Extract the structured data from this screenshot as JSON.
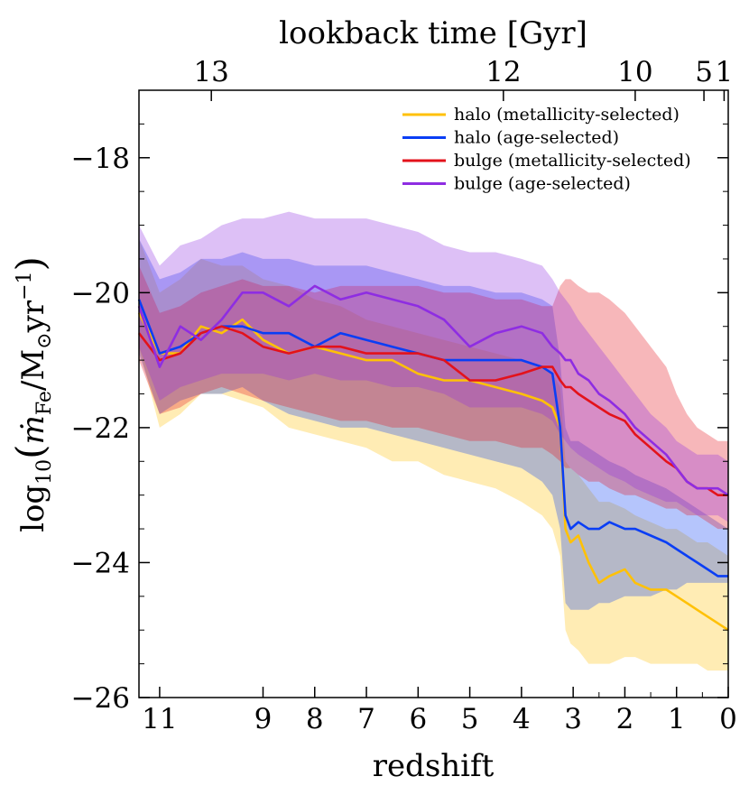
{
  "chart_data": {
    "type": "line",
    "xlabel": "redshift",
    "ylabel": "log10 (ṁFe/M⊙yr⁻¹)",
    "ylabel_parts": {
      "log": "log",
      "sub": "10",
      "lparen": "(",
      "mdot": "ṁ",
      "fe": "Fe",
      "slash": "/M",
      "sun": "⊙",
      "yr": "yr",
      "exp": "−1",
      "rparen": ")"
    },
    "top_xlabel": "lookback time [Gyr]",
    "xlim": [
      11.4,
      0
    ],
    "ylim": [
      -26,
      -17
    ],
    "x_ticks": [
      {
        "value": 11,
        "label": "11"
      },
      {
        "value": 9,
        "label": "9"
      },
      {
        "value": 8,
        "label": "8"
      },
      {
        "value": 7,
        "label": "7"
      },
      {
        "value": 6,
        "label": "6"
      },
      {
        "value": 5,
        "label": "5"
      },
      {
        "value": 4,
        "label": "4"
      },
      {
        "value": 3,
        "label": "3"
      },
      {
        "value": 2,
        "label": "2"
      },
      {
        "value": 1,
        "label": "1"
      },
      {
        "value": 0,
        "label": "0"
      }
    ],
    "y_ticks": [
      {
        "value": -18,
        "label": "−18"
      },
      {
        "value": -20,
        "label": "−20"
      },
      {
        "value": -22,
        "label": "−22"
      },
      {
        "value": -24,
        "label": "−24"
      },
      {
        "value": -26,
        "label": "−26"
      }
    ],
    "top_ticks": [
      {
        "z": 10.0,
        "label": "13"
      },
      {
        "z": 4.35,
        "label": "12"
      },
      {
        "z": 1.8,
        "label": "10"
      },
      {
        "z": 0.47,
        "label": "5"
      },
      {
        "z": 0.08,
        "label": "1"
      }
    ],
    "legend_position": "top-right",
    "series": [
      {
        "name": "halo (metallicity-selected)",
        "color": "#ffc107",
        "x": [
          11.4,
          11.0,
          10.6,
          10.2,
          9.8,
          9.4,
          9.0,
          8.5,
          8.0,
          7.5,
          7.0,
          6.5,
          6.0,
          5.5,
          5.0,
          4.5,
          4.0,
          3.6,
          3.4,
          3.25,
          3.15,
          3.05,
          2.9,
          2.7,
          2.5,
          2.3,
          2.0,
          1.8,
          1.5,
          1.2,
          1.0,
          0.8,
          0.6,
          0.4,
          0.2,
          0.0
        ],
        "y": [
          -20.3,
          -20.9,
          -20.9,
          -20.5,
          -20.6,
          -20.4,
          -20.7,
          -20.9,
          -20.8,
          -20.9,
          -21.0,
          -21.0,
          -21.2,
          -21.3,
          -21.3,
          -21.4,
          -21.5,
          -21.6,
          -21.7,
          -22.0,
          -23.5,
          -23.7,
          -23.6,
          -24.0,
          -24.3,
          -24.2,
          -24.1,
          -24.3,
          -24.4,
          -24.4,
          -24.5,
          -24.6,
          -24.7,
          -24.8,
          -24.9,
          -25.0
        ],
        "low": [
          -20.8,
          -22.0,
          -21.8,
          -21.5,
          -21.5,
          -21.6,
          -21.7,
          -22.0,
          -22.1,
          -22.2,
          -22.3,
          -22.5,
          -22.5,
          -22.7,
          -22.8,
          -22.9,
          -23.1,
          -23.3,
          -23.5,
          -23.9,
          -25.0,
          -25.2,
          -25.3,
          -25.5,
          -25.5,
          -25.5,
          -25.4,
          -25.4,
          -25.5,
          -25.5,
          -25.5,
          -25.5,
          -25.5,
          -25.6,
          -25.6,
          -25.6
        ],
        "high": [
          -19.2,
          -20.0,
          -19.8,
          -19.5,
          -19.6,
          -19.6,
          -19.8,
          -19.9,
          -20.1,
          -20.2,
          -20.4,
          -20.5,
          -20.6,
          -20.7,
          -20.8,
          -20.9,
          -21.0,
          -21.1,
          -21.2,
          -21.4,
          -22.5,
          -22.6,
          -22.7,
          -22.9,
          -23.1,
          -23.1,
          -23.2,
          -23.3,
          -23.4,
          -23.5,
          -23.5,
          -23.6,
          -23.7,
          -23.7,
          -23.8,
          -23.9
        ]
      },
      {
        "name": "halo (age-selected)",
        "color": "#0a3ef5",
        "x": [
          11.4,
          11.0,
          10.6,
          10.2,
          9.8,
          9.4,
          9.0,
          8.5,
          8.0,
          7.5,
          7.0,
          6.5,
          6.0,
          5.5,
          5.0,
          4.5,
          4.0,
          3.6,
          3.4,
          3.25,
          3.15,
          3.05,
          2.9,
          2.7,
          2.5,
          2.3,
          2.0,
          1.8,
          1.5,
          1.2,
          1.0,
          0.8,
          0.6,
          0.4,
          0.2,
          0.0
        ],
        "y": [
          -20.1,
          -20.9,
          -20.8,
          -20.6,
          -20.5,
          -20.5,
          -20.6,
          -20.6,
          -20.8,
          -20.6,
          -20.7,
          -20.8,
          -20.9,
          -21.0,
          -21.0,
          -21.0,
          -21.0,
          -21.1,
          -21.2,
          -22.0,
          -23.3,
          -23.5,
          -23.4,
          -23.5,
          -23.5,
          -23.4,
          -23.5,
          -23.5,
          -23.6,
          -23.7,
          -23.8,
          -23.9,
          -24.0,
          -24.1,
          -24.2,
          -24.2
        ],
        "low": [
          -20.9,
          -21.8,
          -21.6,
          -21.5,
          -21.5,
          -21.4,
          -21.6,
          -21.8,
          -21.9,
          -22.0,
          -22.0,
          -22.1,
          -22.2,
          -22.3,
          -22.4,
          -22.5,
          -22.6,
          -22.8,
          -23.0,
          -23.5,
          -24.6,
          -24.7,
          -24.7,
          -24.7,
          -24.6,
          -24.6,
          -24.5,
          -24.5,
          -24.5,
          -24.4,
          -24.4,
          -24.3,
          -24.3,
          -24.3,
          -24.3,
          -24.3
        ],
        "high": [
          -19.2,
          -19.8,
          -19.7,
          -19.5,
          -19.5,
          -19.4,
          -19.5,
          -19.5,
          -19.6,
          -19.6,
          -19.6,
          -19.7,
          -19.8,
          -19.9,
          -19.9,
          -20.0,
          -20.0,
          -20.1,
          -20.2,
          -21.0,
          -22.0,
          -22.2,
          -22.2,
          -22.3,
          -22.4,
          -22.5,
          -22.6,
          -22.7,
          -22.8,
          -22.9,
          -23.0,
          -23.1,
          -23.2,
          -23.3,
          -23.4,
          -23.5
        ]
      },
      {
        "name": "bulge (metallicity-selected)",
        "color": "#e3121b",
        "x": [
          11.4,
          11.0,
          10.6,
          10.2,
          9.8,
          9.4,
          9.0,
          8.5,
          8.0,
          7.5,
          7.0,
          6.5,
          6.0,
          5.5,
          5.0,
          4.5,
          4.0,
          3.6,
          3.4,
          3.25,
          3.15,
          3.05,
          2.9,
          2.7,
          2.5,
          2.3,
          2.0,
          1.8,
          1.5,
          1.2,
          1.0,
          0.8,
          0.6,
          0.4,
          0.2,
          0.0
        ],
        "y": [
          -20.6,
          -21.0,
          -20.9,
          -20.6,
          -20.5,
          -20.6,
          -20.8,
          -20.9,
          -20.8,
          -20.8,
          -20.9,
          -20.9,
          -20.9,
          -21.0,
          -21.3,
          -21.3,
          -21.2,
          -21.1,
          -21.1,
          -21.3,
          -21.4,
          -21.4,
          -21.5,
          -21.6,
          -21.7,
          -21.8,
          -21.9,
          -22.1,
          -22.3,
          -22.5,
          -22.6,
          -22.8,
          -22.9,
          -22.9,
          -23.0,
          -23.0
        ],
        "low": [
          -21.0,
          -21.8,
          -21.7,
          -21.5,
          -21.4,
          -21.5,
          -21.6,
          -21.7,
          -21.8,
          -21.9,
          -21.9,
          -22.0,
          -22.0,
          -22.1,
          -22.2,
          -22.2,
          -22.3,
          -22.3,
          -22.4,
          -22.5,
          -22.6,
          -22.6,
          -22.7,
          -22.8,
          -22.8,
          -22.9,
          -23.0,
          -23.0,
          -23.1,
          -23.2,
          -23.2,
          -23.3,
          -23.3,
          -23.4,
          -23.5,
          -23.5
        ],
        "high": [
          -19.6,
          -20.3,
          -20.2,
          -20.0,
          -19.9,
          -19.8,
          -19.9,
          -19.9,
          -20.0,
          -19.9,
          -19.9,
          -19.9,
          -19.9,
          -20.0,
          -20.0,
          -20.1,
          -20.1,
          -20.2,
          -20.2,
          -19.9,
          -19.8,
          -19.8,
          -19.9,
          -20.0,
          -20.0,
          -20.1,
          -20.3,
          -20.5,
          -20.8,
          -21.1,
          -21.5,
          -21.8,
          -22.0,
          -22.1,
          -22.2,
          -22.2
        ]
      },
      {
        "name": "bulge (age-selected)",
        "color": "#8e2de2",
        "x": [
          11.4,
          11.0,
          10.6,
          10.2,
          9.8,
          9.4,
          9.0,
          8.5,
          8.0,
          7.5,
          7.0,
          6.5,
          6.0,
          5.5,
          5.0,
          4.5,
          4.0,
          3.6,
          3.4,
          3.25,
          3.15,
          3.05,
          2.9,
          2.7,
          2.5,
          2.3,
          2.0,
          1.8,
          1.5,
          1.2,
          1.0,
          0.8,
          0.6,
          0.4,
          0.2,
          0.0
        ],
        "y": [
          -20.2,
          -21.1,
          -20.5,
          -20.7,
          -20.4,
          -20.0,
          -20.0,
          -20.2,
          -19.9,
          -20.1,
          -20.0,
          -20.1,
          -20.2,
          -20.4,
          -20.8,
          -20.6,
          -20.5,
          -20.6,
          -20.8,
          -20.9,
          -21.0,
          -21.0,
          -21.2,
          -21.3,
          -21.5,
          -21.6,
          -21.8,
          -22.0,
          -22.2,
          -22.4,
          -22.6,
          -22.8,
          -22.9,
          -22.9,
          -22.9,
          -23.0
        ],
        "low": [
          -20.8,
          -21.6,
          -21.4,
          -21.3,
          -21.2,
          -21.2,
          -21.2,
          -21.3,
          -21.2,
          -21.3,
          -21.3,
          -21.4,
          -21.4,
          -21.5,
          -21.7,
          -21.7,
          -21.7,
          -21.8,
          -21.9,
          -22.1,
          -22.2,
          -22.3,
          -22.4,
          -22.5,
          -22.6,
          -22.7,
          -22.8,
          -22.9,
          -23.0,
          -23.1,
          -23.1,
          -23.2,
          -23.3,
          -23.3,
          -23.3,
          -23.4
        ],
        "high": [
          -19.0,
          -19.6,
          -19.3,
          -19.2,
          -19.0,
          -18.9,
          -18.9,
          -18.8,
          -18.9,
          -18.9,
          -18.9,
          -19.0,
          -19.1,
          -19.3,
          -19.4,
          -19.4,
          -19.5,
          -19.6,
          -19.8,
          -20.0,
          -20.1,
          -20.2,
          -20.4,
          -20.6,
          -20.8,
          -21.0,
          -21.3,
          -21.5,
          -21.8,
          -22.0,
          -22.2,
          -22.3,
          -22.4,
          -22.4,
          -22.4,
          -22.5
        ]
      }
    ]
  }
}
